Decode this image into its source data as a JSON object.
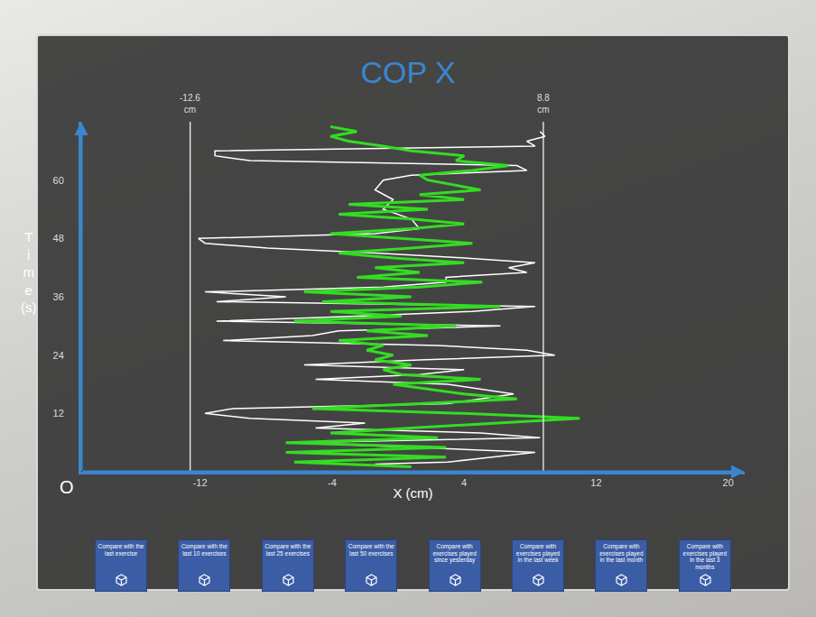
{
  "chart_data": {
    "type": "line",
    "title": "COP X",
    "x_label": "X (cm)",
    "y_label": "Time (s)",
    "origin_label": "O",
    "xlim": [
      -19.2,
      21
    ],
    "ylim": [
      0,
      72
    ],
    "xticks": [
      -12,
      -4,
      4,
      12,
      20
    ],
    "yticks": [
      12,
      24,
      36,
      48,
      60
    ],
    "grid": false,
    "reference_lines": [
      {
        "value": -12.6,
        "label": "-12.6 cm"
      },
      {
        "value": 8.8,
        "label": "8.8 cm"
      }
    ],
    "series": [
      {
        "color": "#ffffff",
        "x": [
          -1.4,
          3,
          8.3,
          -6.3,
          8.6,
          5,
          -5,
          -2,
          -9,
          -11.7,
          -10,
          3,
          7,
          3,
          -5,
          1.3,
          4,
          -5.7,
          1.3,
          9.5,
          7.8,
          2.4,
          -10.6,
          -5.2,
          -3.6,
          6.2,
          -11,
          -2.5,
          4.5,
          8.3,
          -11,
          -6.8,
          -11.7,
          -0.9,
          2.9,
          2.9,
          7.8,
          6.7,
          8.3,
          4,
          -1.4,
          -7.9,
          -11.7,
          -12.1,
          -1.4,
          1.3,
          0.8,
          -0.9,
          -0.3,
          -1.4,
          -0.9,
          0.8,
          7.8,
          7.2,
          -9,
          -11.1,
          -11.1,
          8.3,
          7.8,
          8.9,
          8.6
        ],
        "y": [
          1.6,
          2,
          4,
          6,
          7,
          8,
          9,
          10,
          11,
          12,
          13,
          14,
          16,
          18,
          19,
          20,
          21,
          22,
          23,
          24,
          25,
          26,
          27,
          28,
          29,
          30,
          31,
          32,
          33,
          34,
          35,
          36,
          37,
          38,
          39,
          40,
          41,
          42,
          43,
          44,
          45,
          46,
          47,
          48,
          49,
          50,
          52,
          54,
          56,
          58,
          60,
          61,
          62,
          63,
          64,
          65,
          66,
          67,
          68,
          69,
          70
        ]
      },
      {
        "color": "#33dd22",
        "x": [
          0.8,
          -6.3,
          2.9,
          -6.8,
          2.9,
          -6.8,
          2.4,
          -4.1,
          0.8,
          6.2,
          11,
          4,
          -5.2,
          1.3,
          7.2,
          4,
          1.8,
          -0.3,
          5,
          0.2,
          -0.9,
          0.8,
          -1.4,
          -0.3,
          -1.9,
          -0.9,
          -3.6,
          1.8,
          -1.9,
          3.5,
          -6.3,
          0.2,
          -4.1,
          6.2,
          -4.6,
          0.8,
          -5.7,
          1.3,
          5.1,
          -2.5,
          1.3,
          -1.4,
          4,
          -0.3,
          -3.6,
          0.8,
          4.5,
          0.2,
          -4.1,
          0.8,
          4,
          0.8,
          -3.6,
          1.8,
          -3,
          4,
          1.3,
          5,
          3.5,
          1.8,
          1.3,
          4.5,
          6.7,
          3.5,
          4,
          0.8,
          -0.9,
          -3,
          -4.1,
          -2.5,
          -4.1
        ],
        "y": [
          1,
          2,
          3,
          4,
          5,
          6,
          7,
          8,
          9,
          10,
          11,
          12,
          13,
          14,
          15,
          16,
          17,
          18,
          19,
          20,
          21,
          22,
          23,
          24,
          25,
          26,
          27,
          28,
          29,
          30,
          31,
          32,
          33,
          34,
          35,
          36,
          37,
          38,
          39,
          40,
          41,
          42,
          43,
          44,
          45,
          46,
          47,
          48,
          49,
          50,
          51,
          52,
          53,
          54,
          55,
          56,
          57,
          58,
          59,
          60,
          61,
          62,
          63,
          64,
          65,
          66,
          67,
          68,
          69,
          70,
          71
        ]
      }
    ]
  },
  "buttons": [
    "Compare with the last exercise",
    "Compare with the last 10 exercises",
    "Compare with the last 25 exercises",
    "Compare with the last 50 exercises",
    "Compare with exercises played since yesterday",
    "Compare with exercises played in the last week",
    "Compare with exercises played in the last month",
    "Compare with exercises played in the last 3 months"
  ]
}
